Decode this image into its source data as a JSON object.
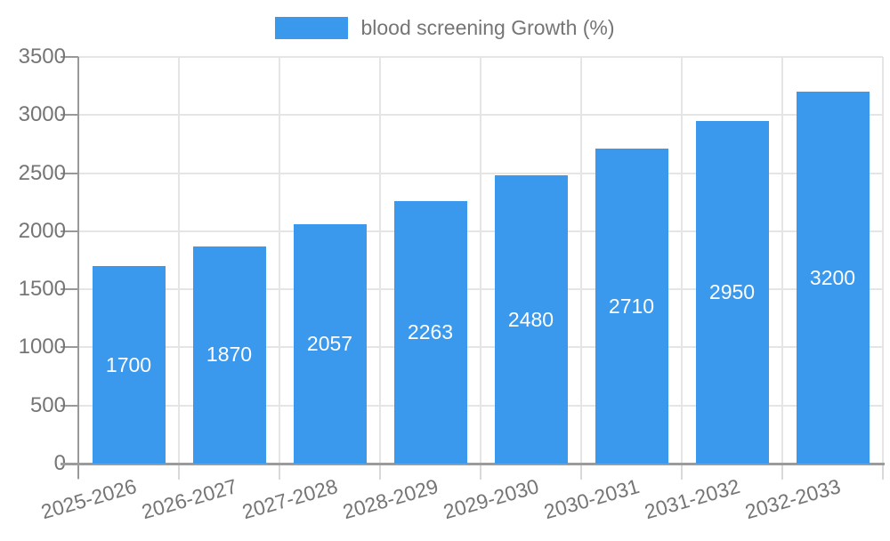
{
  "legend": {
    "label": "blood screening Growth (%)"
  },
  "chart_data": {
    "type": "bar",
    "title": "blood screening Growth (%)",
    "series_name": "blood screening Growth (%)",
    "categories": [
      "2025-2026",
      "2026-2027",
      "2027-2028",
      "2028-2029",
      "2029-2030",
      "2030-2031",
      "2031-2032",
      "2032-2033"
    ],
    "values": [
      1700,
      1870,
      2057,
      2263,
      2480,
      2710,
      2950,
      3200
    ],
    "xlabel": "",
    "ylabel": "",
    "ylim": [
      0,
      3500
    ],
    "ytick_step": 500,
    "ytick_labels": [
      "0",
      "500",
      "1000",
      "1500",
      "2000",
      "2500",
      "3000",
      "3500"
    ],
    "grid": true,
    "legend_position": "top",
    "value_labels_inside_bars": true,
    "colors": {
      "bar": "#3a99ec",
      "grid": "#e5e5e5",
      "axis": "#999999",
      "tick_label": "#757575",
      "value_label": "#ffffff",
      "background": "#ffffff"
    }
  }
}
